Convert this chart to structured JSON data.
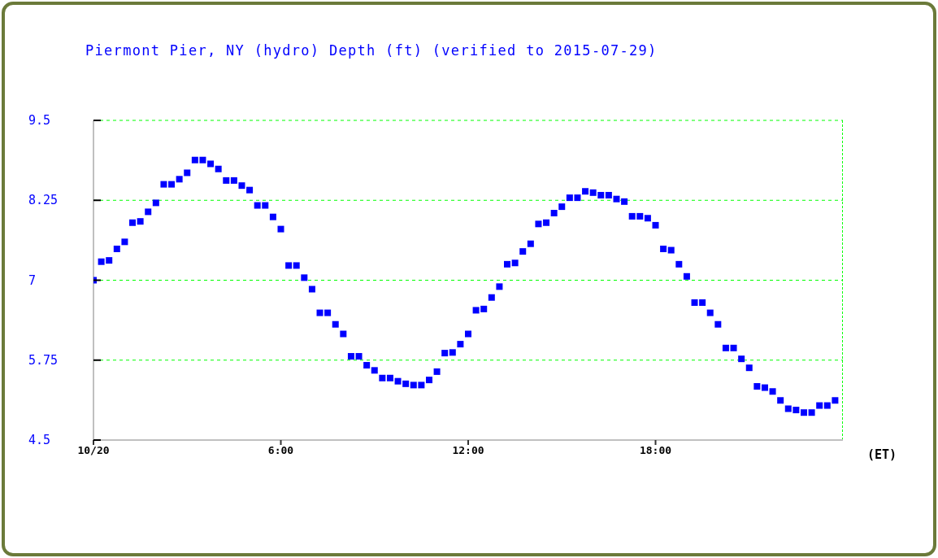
{
  "chart_data": {
    "type": "scatter",
    "title": "Piermont Pier, NY (hydro) Depth (ft) (verified to 2015-07-29)",
    "xlabel": "(ET)",
    "x": [
      0,
      0.25,
      0.5,
      0.75,
      1,
      1.25,
      1.5,
      1.75,
      2,
      2.25,
      2.5,
      2.75,
      3,
      3.25,
      3.5,
      3.75,
      4,
      4.25,
      4.5,
      4.75,
      5,
      5.25,
      5.5,
      5.75,
      6,
      6.25,
      6.5,
      6.75,
      7,
      7.25,
      7.5,
      7.75,
      8,
      8.25,
      8.5,
      8.75,
      9,
      9.25,
      9.5,
      9.75,
      10,
      10.25,
      10.5,
      10.75,
      11,
      11.25,
      11.5,
      11.75,
      12,
      12.25,
      12.5,
      12.75,
      13,
      13.25,
      13.5,
      13.75,
      14,
      14.25,
      14.5,
      14.75,
      15,
      15.25,
      15.5,
      15.75,
      16,
      16.25,
      16.5,
      16.75,
      17,
      17.25,
      17.5,
      17.75,
      18,
      18.25,
      18.5,
      18.75,
      19,
      19.25,
      19.5,
      19.75,
      20,
      20.25,
      20.5,
      20.75,
      21,
      21.25,
      21.5,
      21.75,
      22,
      22.25,
      22.5,
      22.75,
      23,
      23.25,
      23.5,
      23.75
    ],
    "series": [
      {
        "color": "#0000ff",
        "values": [
          7.0,
          7.29,
          7.31,
          7.49,
          7.6,
          7.9,
          7.92,
          8.07,
          8.21,
          8.5,
          8.5,
          8.58,
          8.68,
          8.88,
          8.88,
          8.82,
          8.74,
          8.56,
          8.56,
          8.48,
          8.41,
          8.17,
          8.17,
          7.99,
          7.8,
          7.23,
          7.23,
          7.04,
          6.86,
          6.49,
          6.49,
          6.31,
          6.16,
          5.81,
          5.81,
          5.67,
          5.59,
          5.47,
          5.47,
          5.42,
          5.38,
          5.36,
          5.36,
          5.44,
          5.57,
          5.86,
          5.87,
          6.0,
          6.16,
          6.53,
          6.55,
          6.73,
          6.9,
          7.25,
          7.27,
          7.45,
          7.57,
          7.88,
          7.9,
          8.05,
          8.15,
          8.29,
          8.29,
          8.39,
          8.37,
          8.33,
          8.33,
          8.27,
          8.23,
          8.0,
          8.0,
          7.97,
          7.86,
          7.49,
          7.47,
          7.25,
          7.06,
          6.65,
          6.65,
          6.49,
          6.31,
          5.94,
          5.94,
          5.77,
          5.63,
          5.34,
          5.32,
          5.26,
          5.12,
          4.99,
          4.97,
          4.93,
          4.93,
          5.04,
          5.04,
          5.12
        ]
      }
    ],
    "xlim": [
      0,
      24
    ],
    "xticks": [
      {
        "value": 0,
        "label": "10/20"
      },
      {
        "value": 6,
        "label": "6:00"
      },
      {
        "value": 12,
        "label": "12:00"
      },
      {
        "value": 18,
        "label": "18:00"
      }
    ],
    "ylim": [
      4.5,
      9.5
    ],
    "yticks": [
      4.5,
      5.75,
      7,
      8.25,
      9.5
    ],
    "grid": "y",
    "marker": "square"
  }
}
